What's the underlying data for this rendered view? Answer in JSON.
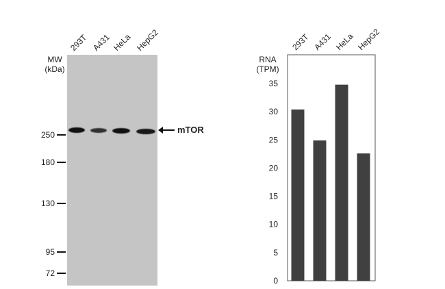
{
  "blot": {
    "lanes": [
      "293T",
      "A431",
      "HeLa",
      "HepG2"
    ],
    "mw_title": "MW\n(kDa)",
    "markers": [
      {
        "label": "250",
        "kda": 250
      },
      {
        "label": "180",
        "kda": 180
      },
      {
        "label": "130",
        "kda": 130
      },
      {
        "label": "95",
        "kda": 95
      },
      {
        "label": "72",
        "kda": 72
      }
    ],
    "band_intensity": [
      1.0,
      0.6,
      1.0,
      0.9
    ],
    "protein_label": "mTOR",
    "arrow": "left-arrow-icon",
    "colors": {
      "membrane": "#c5c5c5",
      "band": "#111111"
    }
  },
  "chart_data": {
    "type": "bar",
    "categories": [
      "293T",
      "A431",
      "HeLa",
      "HepG2"
    ],
    "values": [
      30.4,
      24.9,
      34.8,
      22.6
    ],
    "ylabel": "RNA\n(TPM)",
    "ylim": [
      0,
      35
    ],
    "yticks": [
      0,
      5,
      10,
      15,
      20,
      25,
      30,
      35
    ],
    "grid": false,
    "bar_color": "#404040"
  }
}
